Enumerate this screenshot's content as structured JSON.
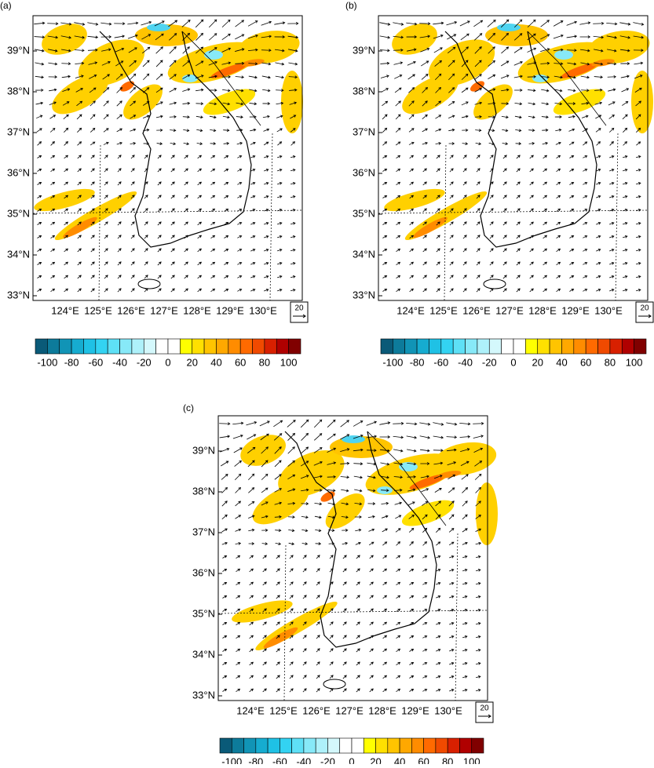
{
  "colorbar_colors": [
    "#0a5a78",
    "#0d7b9b",
    "#1194b6",
    "#16acd0",
    "#1fc1e5",
    "#33d3f2",
    "#5ee0f6",
    "#87e9f8",
    "#aef1fa",
    "#d4f8fc",
    "#ffffff",
    "#ffffff",
    "#ffff00",
    "#ffe000",
    "#ffc400",
    "#ffa800",
    "#ff8c00",
    "#ff6a00",
    "#f04a00",
    "#d82000",
    "#b00000",
    "#800000"
  ],
  "panels": [
    {
      "label": "(a)",
      "lat_labels": [
        "39°N",
        "38°N",
        "37°N",
        "36°N",
        "35°N",
        "34°N",
        "33°N"
      ],
      "lon_labels": [
        "124°E",
        "125°E",
        "126°E",
        "127°E",
        "128°E",
        "129°E",
        "130°E"
      ],
      "ref_vector": "20",
      "colorbar_labels": [
        -100,
        -80,
        -60,
        -40,
        -20,
        0,
        20,
        40,
        60,
        80,
        100
      ]
    },
    {
      "label": "(b)",
      "lat_labels": [
        "39°N",
        "38°N",
        "37°N",
        "36°N",
        "35°N",
        "34°N",
        "33°N"
      ],
      "lon_labels": [
        "124°E",
        "125°E",
        "126°E",
        "127°E",
        "128°E",
        "129°E",
        "130°E"
      ],
      "ref_vector": "20",
      "colorbar_labels": [
        -100,
        -80,
        -60,
        -40,
        -20,
        0,
        20,
        40,
        60,
        80,
        100
      ]
    },
    {
      "label": "(c)",
      "lat_labels": [
        "39°N",
        "38°N",
        "37°N",
        "36°N",
        "35°N",
        "34°N",
        "33°N"
      ],
      "lon_labels": [
        "124°E",
        "125°E",
        "126°E",
        "127°E",
        "128°E",
        "129°E",
        "130°E"
      ],
      "ref_vector": "20",
      "colorbar_labels": [
        -100,
        -80,
        -60,
        -40,
        -20,
        0,
        20,
        40,
        60,
        80,
        100
      ]
    }
  ]
}
